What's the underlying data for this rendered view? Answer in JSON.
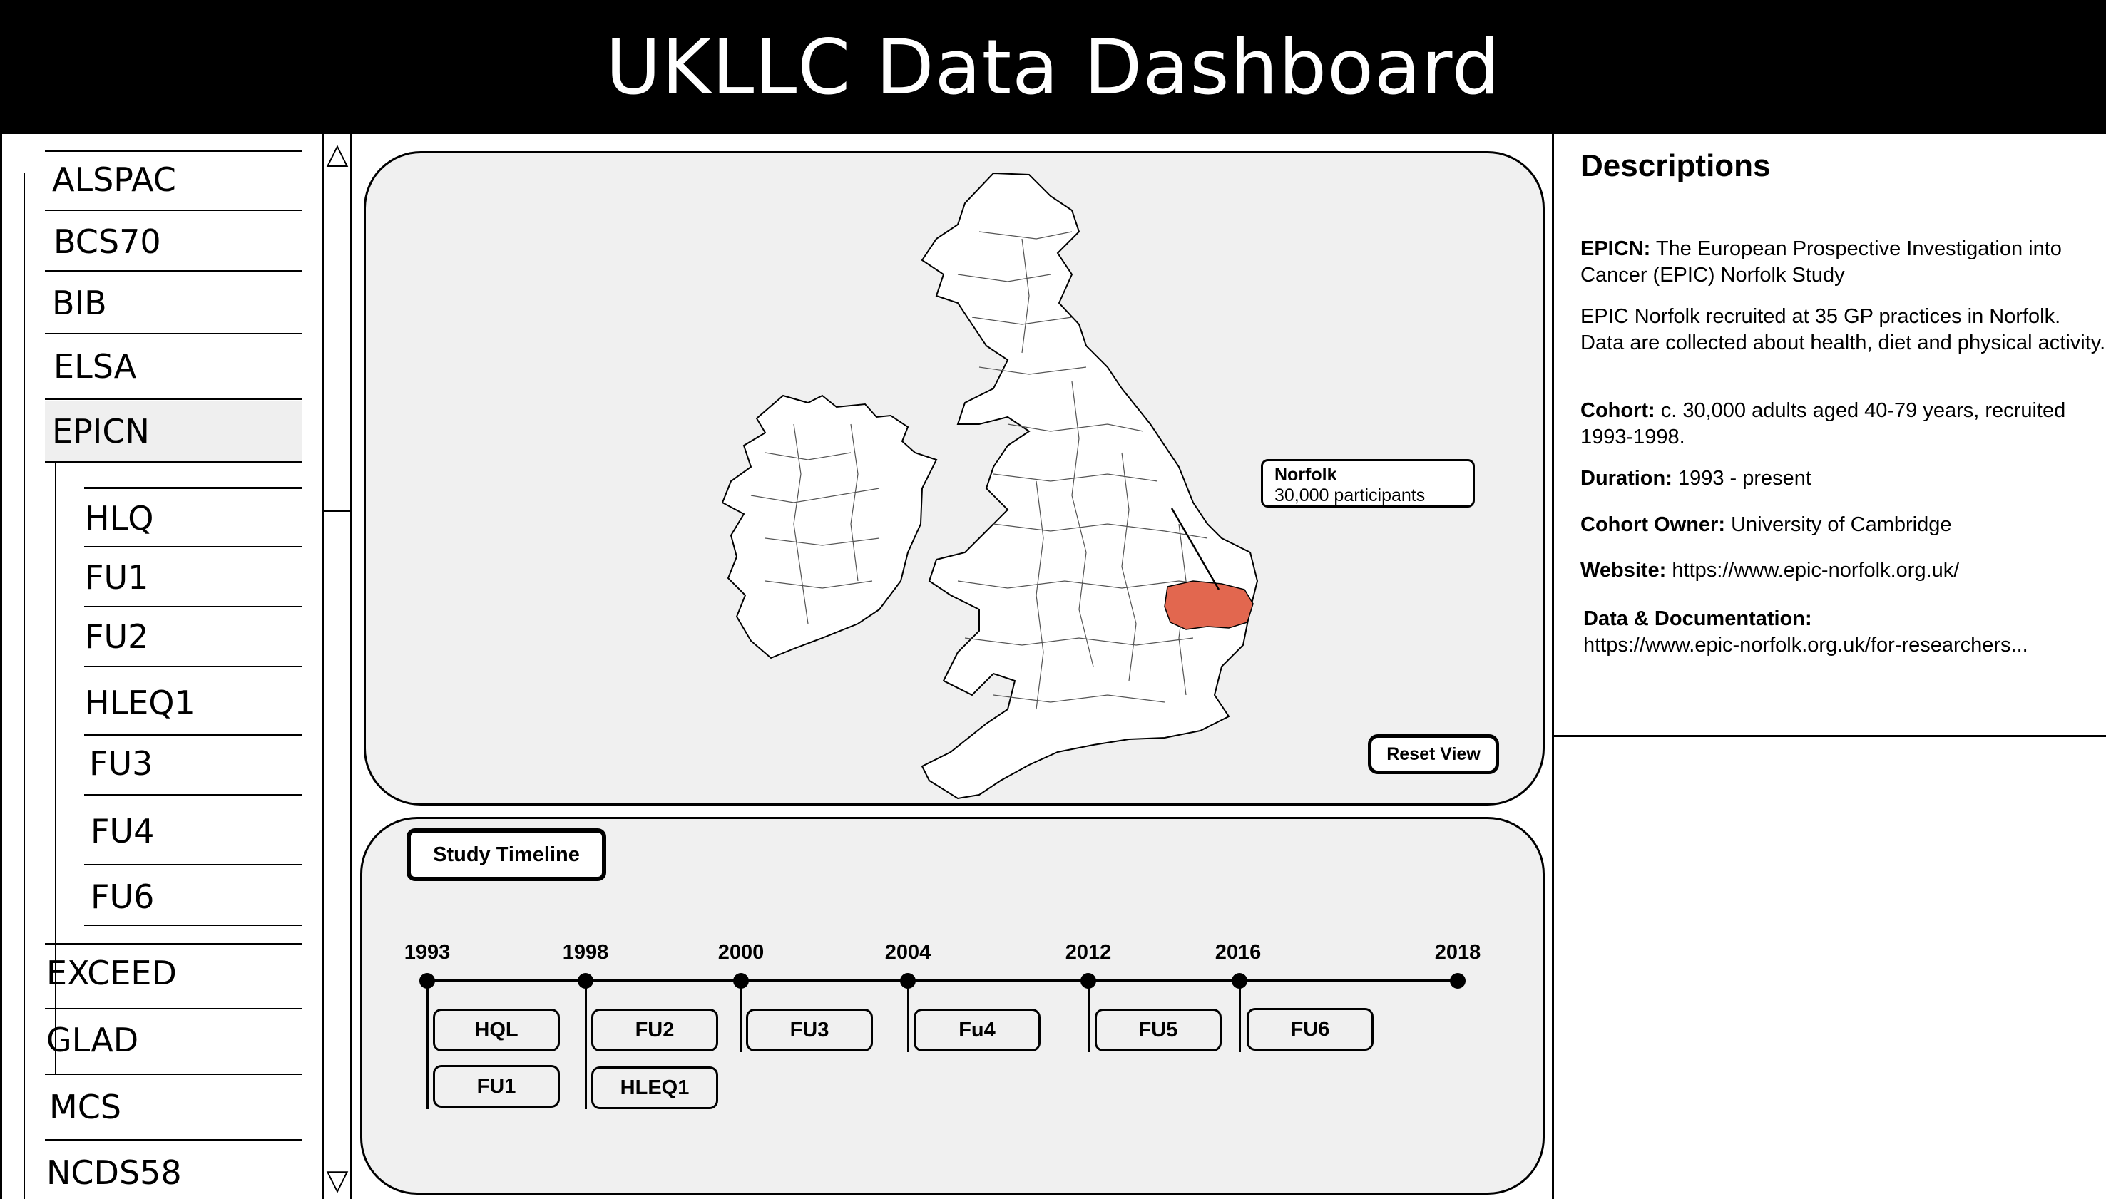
{
  "header": {
    "title": "UKLLC Data Dashboard"
  },
  "sidebar": {
    "items": [
      {
        "label": "ALSPAC"
      },
      {
        "label": "BCS70"
      },
      {
        "label": "BIB"
      },
      {
        "label": "ELSA"
      },
      {
        "label": "EPICN",
        "selected": true
      },
      {
        "label": "EXCEED"
      },
      {
        "label": "GLAD"
      },
      {
        "label": "MCS"
      },
      {
        "label": "NCDS58"
      }
    ],
    "subitems": [
      {
        "label": "HLQ"
      },
      {
        "label": "FU1"
      },
      {
        "label": "FU2"
      },
      {
        "label": "HLEQ1"
      },
      {
        "label": "FU3"
      },
      {
        "label": "FU4"
      },
      {
        "label": "FU6"
      }
    ],
    "scroll_up_glyph": "△",
    "scroll_down_glyph": "▽"
  },
  "map": {
    "highlight_color": "#e2674f",
    "highlight_region": "Norfolk",
    "tooltip": {
      "title": "Norfolk",
      "subtitle": "30,000 participants"
    },
    "reset_label": "Reset View"
  },
  "timeline": {
    "title": "Study Timeline",
    "years": [
      "1993",
      "1998",
      "2000",
      "2004",
      "2012",
      "2016",
      "2018"
    ],
    "buttons": [
      {
        "label": "HQL"
      },
      {
        "label": "FU1"
      },
      {
        "label": "FU2"
      },
      {
        "label": "HLEQ1"
      },
      {
        "label": "FU3"
      },
      {
        "label": "Fu4"
      },
      {
        "label": "FU5"
      },
      {
        "label": "FU6"
      }
    ]
  },
  "descriptions": {
    "heading": "Descriptions",
    "study_label": "EPICN:",
    "study_text": "The European Prospective Investigation into Cancer (EPIC) Norfolk Study",
    "summary": "EPIC Norfolk recruited at 35 GP practices in Norfolk. Data are collected about health, diet and physical activity.",
    "cohort_label": "Cohort:",
    "cohort_text": "c. 30,000 adults aged 40-79 years, recruited 1993-1998.",
    "duration_label": "Duration:",
    "duration_text": "1993 - present",
    "owner_label": "Cohort Owner:",
    "owner_text": "University of Cambridge",
    "website_label": "Website:",
    "website_text": "https://www.epic-norfolk.org.uk/",
    "docs_label": "Data & Documentation:",
    "docs_text": "https://www.epic-norfolk.org.uk/for-researchers..."
  }
}
